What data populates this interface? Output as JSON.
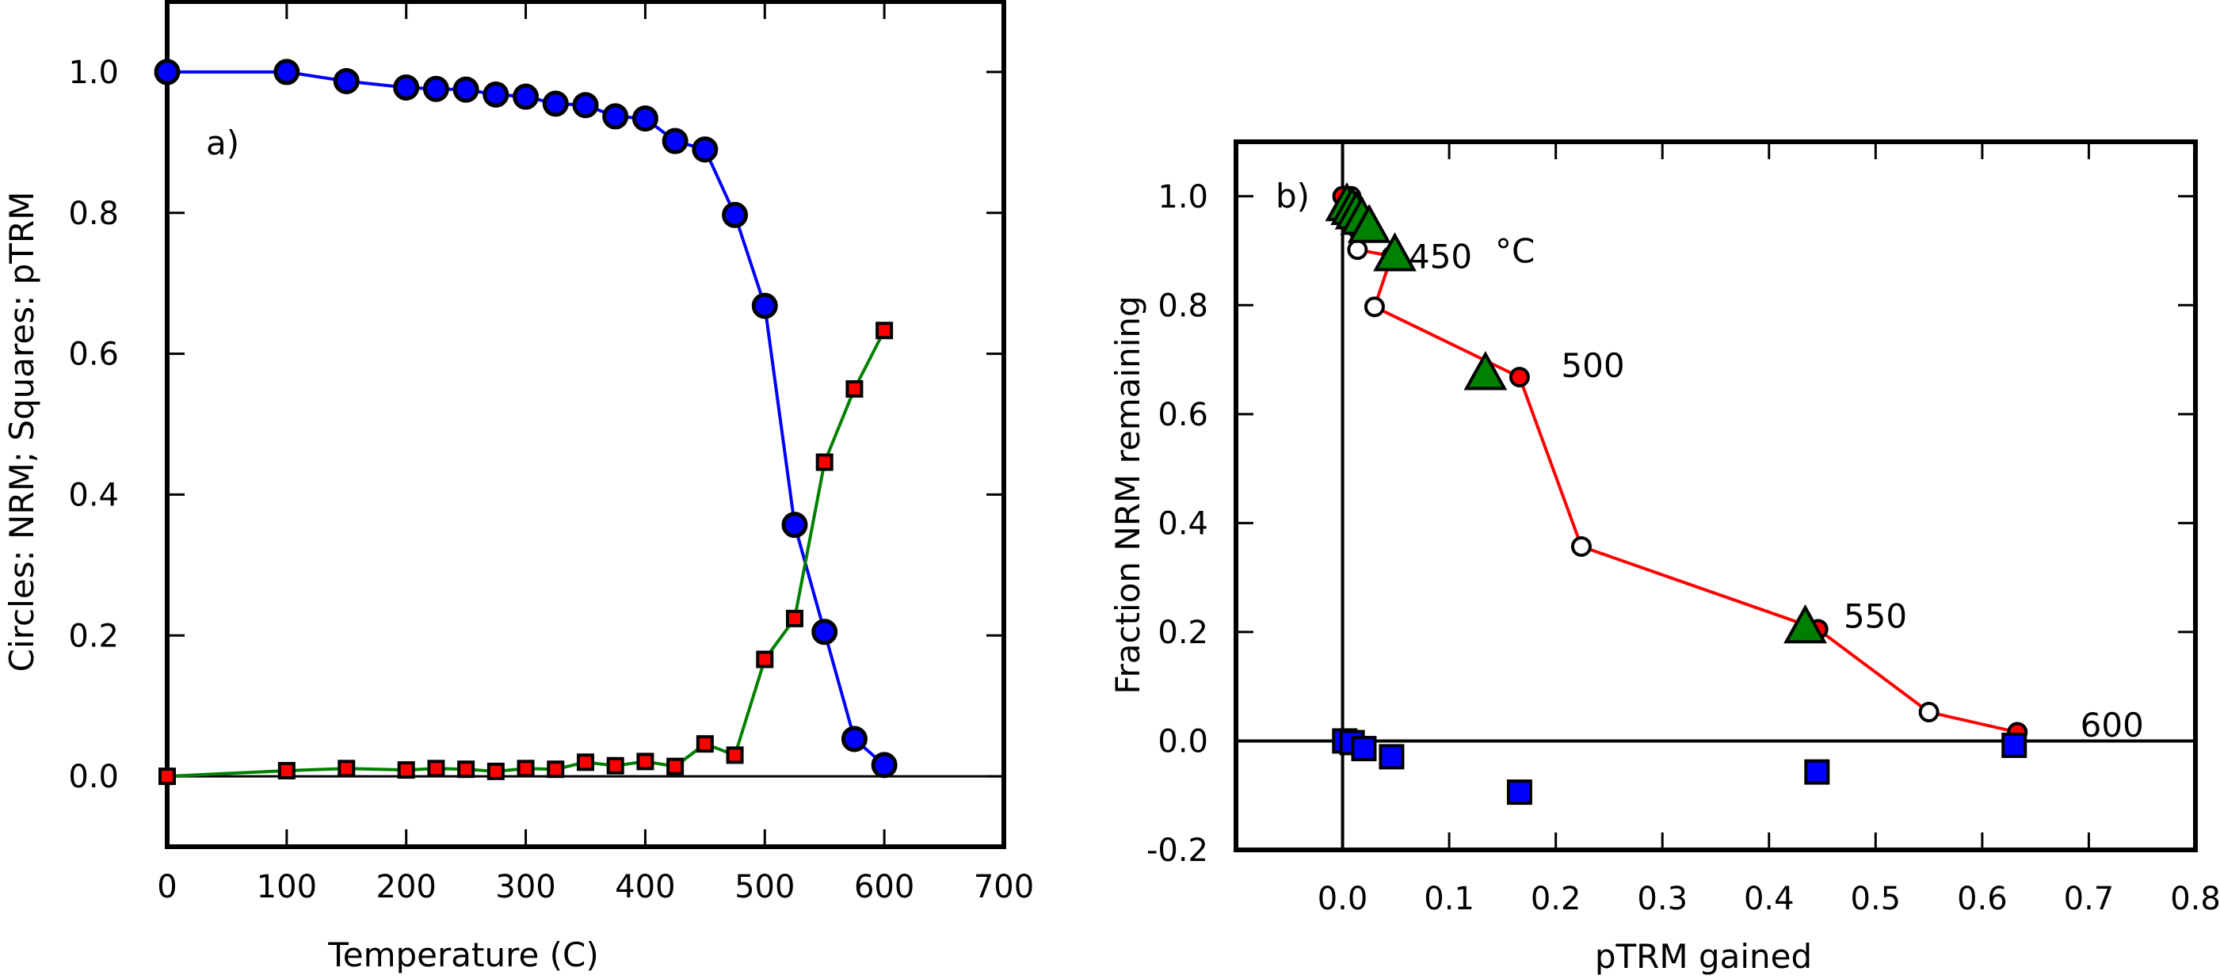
{
  "chart_data": [
    {
      "type": "line",
      "panel_label": "a)",
      "xlabel": "Temperature (C)",
      "ylabel": "Circles: NRM; Squares: pTRM",
      "xlim": [
        0,
        700
      ],
      "ylim": [
        -0.1,
        1.1
      ],
      "xticks": [
        "0",
        "100",
        "200",
        "300",
        "400",
        "500",
        "600",
        "700"
      ],
      "yticks": [
        "0.0",
        "0.2",
        "0.4",
        "0.6",
        "0.8",
        "1.0"
      ],
      "grid": false,
      "x": [
        0,
        100,
        150,
        200,
        225,
        250,
        275,
        300,
        325,
        350,
        375,
        400,
        425,
        450,
        475,
        500,
        525,
        550,
        575,
        600
      ],
      "series": [
        {
          "marker": "circle",
          "line_color": "#0000ff",
          "marker_color": "#0000ff",
          "values": [
            1.0,
            1.0,
            0.987,
            0.978,
            0.976,
            0.975,
            0.968,
            0.965,
            0.955,
            0.953,
            0.937,
            0.934,
            0.902,
            0.89,
            0.797,
            0.668,
            0.357,
            0.205,
            0.053,
            0.016
          ]
        },
        {
          "marker": "square",
          "line_color": "#008000",
          "marker_color": "#ff0000",
          "values": [
            0.0,
            0.008,
            0.011,
            0.009,
            0.011,
            0.01,
            0.007,
            0.011,
            0.01,
            0.02,
            0.015,
            0.021,
            0.014,
            0.046,
            0.03,
            0.166,
            0.224,
            0.446,
            0.55,
            0.633
          ]
        }
      ]
    },
    {
      "type": "scatter",
      "panel_label": "b)",
      "xlabel": "pTRM gained",
      "ylabel": "Fraction NRM remaining",
      "xlim": [
        -0.1,
        0.8
      ],
      "ylim": [
        -0.2,
        1.1
      ],
      "xticks": [
        "0.0",
        "0.1",
        "0.2",
        "0.3",
        "0.4",
        "0.5",
        "0.6",
        "0.7",
        "0.8"
      ],
      "yticks": [
        "-0.2",
        "0.0",
        "0.2",
        "0.4",
        "0.6",
        "0.8",
        "1.0"
      ],
      "grid": false,
      "arai_points": {
        "line_color": "#ff0000",
        "points": [
          [
            0.0,
            1.0,
            "red"
          ],
          [
            0.008,
            1.0,
            "white"
          ],
          [
            0.011,
            0.987,
            "red"
          ],
          [
            0.009,
            0.978,
            "white"
          ],
          [
            0.011,
            0.976,
            "red"
          ],
          [
            0.01,
            0.975,
            "white"
          ],
          [
            0.007,
            0.968,
            "red"
          ],
          [
            0.011,
            0.965,
            "white"
          ],
          [
            0.01,
            0.955,
            "red"
          ],
          [
            0.02,
            0.953,
            "white"
          ],
          [
            0.015,
            0.937,
            "red"
          ],
          [
            0.021,
            0.934,
            "white"
          ],
          [
            0.014,
            0.902,
            "white"
          ],
          [
            0.046,
            0.89,
            "red"
          ],
          [
            0.03,
            0.797,
            "white"
          ],
          [
            0.166,
            0.668,
            "red"
          ],
          [
            0.224,
            0.357,
            "white"
          ],
          [
            0.446,
            0.205,
            "red"
          ],
          [
            0.55,
            0.053,
            "white"
          ],
          [
            0.633,
            0.016,
            "red"
          ]
        ]
      },
      "ptrm_checks": {
        "marker": "triangle",
        "color": "#008000",
        "points": [
          [
            0.004,
            0.985
          ],
          [
            0.009,
            0.978
          ],
          [
            0.013,
            0.97
          ],
          [
            0.018,
            0.96
          ],
          [
            0.025,
            0.945
          ],
          [
            0.049,
            0.893
          ],
          [
            0.134,
            0.675
          ],
          [
            0.434,
            0.21
          ]
        ]
      },
      "tail_checks": {
        "marker": "square",
        "color": "#0000ff",
        "points": [
          [
            0.002,
            0.0
          ],
          [
            0.009,
            -0.003
          ],
          [
            0.02,
            -0.014
          ],
          [
            0.046,
            -0.029
          ],
          [
            0.166,
            -0.094
          ],
          [
            0.445,
            -0.057
          ],
          [
            0.63,
            -0.008
          ]
        ]
      },
      "annotations": [
        {
          "text": "450",
          "x": 0.062,
          "y": 0.89
        },
        {
          "text": "°C",
          "x": 0.143,
          "y": 0.9
        },
        {
          "text": "500",
          "x": 0.205,
          "y": 0.69
        },
        {
          "text": "550",
          "x": 0.47,
          "y": 0.23
        },
        {
          "text": "600",
          "x": 0.692,
          "y": 0.03
        }
      ]
    }
  ]
}
